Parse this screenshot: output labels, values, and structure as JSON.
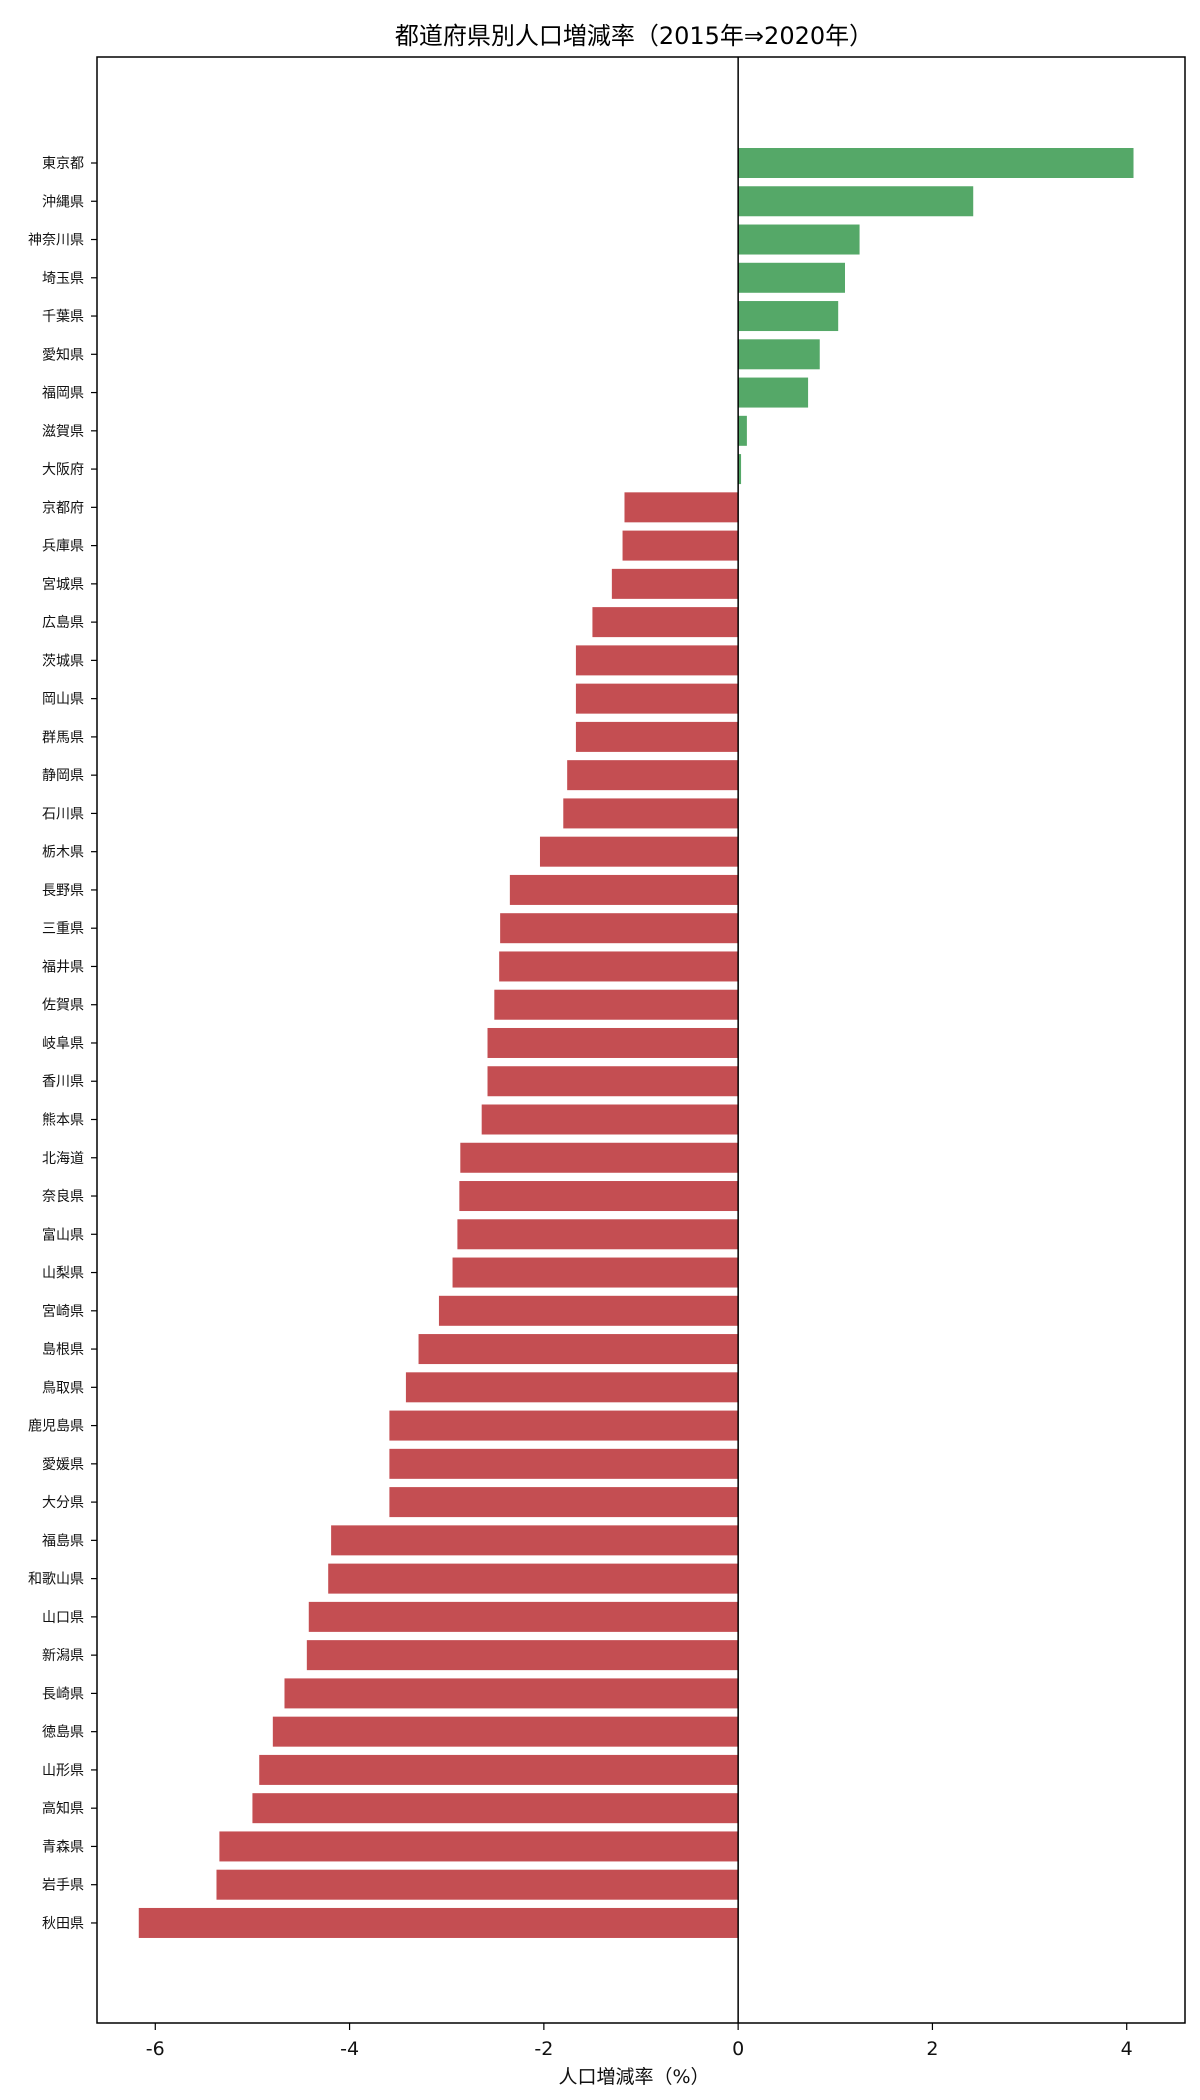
{
  "chart_data": {
    "type": "bar",
    "orientation": "horizontal",
    "title": "都道府県別人口増減率（2015年⇒2020年）",
    "xlabel": "人口増減率（%）",
    "ylabel": "",
    "xlim": [
      -6.6,
      4.6
    ],
    "x_ticks": [
      -6,
      -4,
      -2,
      0,
      2,
      4
    ],
    "grid": false,
    "colors": {
      "positive": "#55a868",
      "negative": "#c44e52",
      "zero_line": "#000000"
    },
    "categories": [
      "東京都",
      "沖縄県",
      "神奈川県",
      "埼玉県",
      "千葉県",
      "愛知県",
      "福岡県",
      "滋賀県",
      "大阪府",
      "京都府",
      "兵庫県",
      "宮城県",
      "広島県",
      "茨城県",
      "岡山県",
      "群馬県",
      "静岡県",
      "石川県",
      "栃木県",
      "長野県",
      "三重県",
      "福井県",
      "佐賀県",
      "岐阜県",
      "香川県",
      "熊本県",
      "北海道",
      "奈良県",
      "富山県",
      "山梨県",
      "宮崎県",
      "島根県",
      "鳥取県",
      "鹿児島県",
      "愛媛県",
      "大分県",
      "福島県",
      "和歌山県",
      "山口県",
      "新潟県",
      "長崎県",
      "徳島県",
      "山形県",
      "高知県",
      "青森県",
      "岩手県",
      "秋田県"
    ],
    "values": [
      4.07,
      2.42,
      1.25,
      1.1,
      1.03,
      0.84,
      0.72,
      0.09,
      0.03,
      -1.17,
      -1.19,
      -1.3,
      -1.5,
      -1.67,
      -1.67,
      -1.67,
      -1.76,
      -1.8,
      -2.04,
      -2.35,
      -2.45,
      -2.46,
      -2.51,
      -2.58,
      -2.58,
      -2.64,
      -2.86,
      -2.87,
      -2.89,
      -2.94,
      -3.08,
      -3.29,
      -3.42,
      -3.59,
      -3.59,
      -3.59,
      -4.19,
      -4.22,
      -4.42,
      -4.44,
      -4.67,
      -4.79,
      -4.93,
      -5.0,
      -5.34,
      -5.37,
      -6.17
    ]
  }
}
